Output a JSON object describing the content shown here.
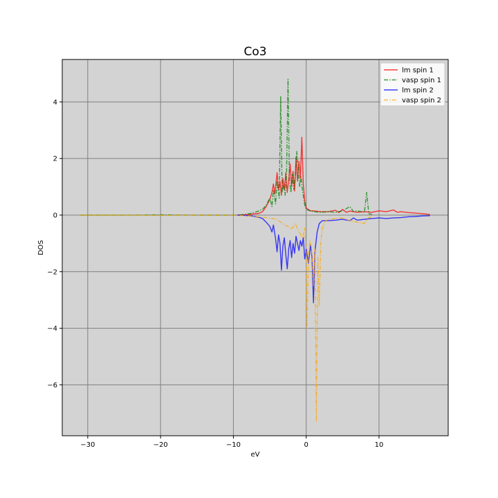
{
  "chart_data": {
    "type": "line",
    "title": "Co3",
    "xlabel": "eV",
    "ylabel": "DOS",
    "xlim": [
      -33.5,
      19.5
    ],
    "ylim": [
      -7.8,
      5.5
    ],
    "xticks": [
      -30,
      -20,
      -10,
      0,
      10
    ],
    "yticks": [
      4,
      2,
      0,
      -2,
      -4,
      -6
    ],
    "xtick_labels": [
      "−30",
      "−20",
      "−10",
      "0",
      "10"
    ],
    "ytick_labels": [
      "4",
      "2",
      "0",
      "−2",
      "−4",
      "−6"
    ],
    "grid": true,
    "plot_background": "#d3d3d3",
    "grid_color": "#808080",
    "legend_position": "top-right",
    "series": [
      {
        "name": "lm spin 1",
        "color": "#ff0000",
        "dash": "solid",
        "points": [
          [
            -9.5,
            0
          ],
          [
            -8.5,
            0.01
          ],
          [
            -7.5,
            0.03
          ],
          [
            -6.5,
            0.06
          ],
          [
            -6,
            0.12
          ],
          [
            -5.5,
            0.3
          ],
          [
            -5,
            0.55
          ],
          [
            -4.7,
            0.8
          ],
          [
            -4.5,
            1.1
          ],
          [
            -4.3,
            0.75
          ],
          [
            -4,
            1.5
          ],
          [
            -3.8,
            0.9
          ],
          [
            -3.6,
            1.2
          ],
          [
            -3.4,
            0.7
          ],
          [
            -3.2,
            1.3
          ],
          [
            -3,
            0.9
          ],
          [
            -2.8,
            1.5
          ],
          [
            -2.6,
            0.8
          ],
          [
            -2.4,
            1.25
          ],
          [
            -2.2,
            1.8
          ],
          [
            -2,
            1.0
          ],
          [
            -1.8,
            1.55
          ],
          [
            -1.6,
            0.85
          ],
          [
            -1.4,
            2.05
          ],
          [
            -1.2,
            1.2
          ],
          [
            -1,
            1.9
          ],
          [
            -0.8,
            1.3
          ],
          [
            -0.6,
            2.75
          ],
          [
            -0.4,
            1.1
          ],
          [
            -0.2,
            0.5
          ],
          [
            0,
            0.25
          ],
          [
            0.3,
            0.2
          ],
          [
            0.6,
            0.15
          ],
          [
            1,
            0.15
          ],
          [
            2,
            0.12
          ],
          [
            3,
            0.12
          ],
          [
            4,
            0.17
          ],
          [
            4.5,
            0.09
          ],
          [
            5,
            0.2
          ],
          [
            5.5,
            0.1
          ],
          [
            6,
            0.14
          ],
          [
            7,
            0.1
          ],
          [
            8,
            0.12
          ],
          [
            9,
            0.1
          ],
          [
            10,
            0.15
          ],
          [
            11,
            0.12
          ],
          [
            12,
            0.18
          ],
          [
            12.5,
            0.1
          ],
          [
            13,
            0.12
          ],
          [
            14,
            0.09
          ],
          [
            15,
            0.07
          ],
          [
            16,
            0.05
          ],
          [
            17,
            0.02
          ]
        ]
      },
      {
        "name": "vasp spin 1",
        "color": "#008000",
        "dash": "dashdot",
        "points": [
          [
            -31,
            0
          ],
          [
            -25,
            0
          ],
          [
            -20,
            0.01
          ],
          [
            -15,
            0
          ],
          [
            -10,
            0
          ],
          [
            -9,
            0.01
          ],
          [
            -8,
            0.04
          ],
          [
            -7,
            0.1
          ],
          [
            -6.5,
            0.15
          ],
          [
            -6,
            0.2
          ],
          [
            -5.5,
            0.35
          ],
          [
            -5,
            0.6
          ],
          [
            -4.7,
            0.3
          ],
          [
            -4.5,
            0.9
          ],
          [
            -4.2,
            0.4
          ],
          [
            -4,
            1.2
          ],
          [
            -3.7,
            0.6
          ],
          [
            -3.5,
            4.2
          ],
          [
            -3.3,
            0.8
          ],
          [
            -3.1,
            1.1
          ],
          [
            -2.9,
            0.7
          ],
          [
            -2.7,
            1.4
          ],
          [
            -2.5,
            4.8
          ],
          [
            -2.3,
            1.2
          ],
          [
            -2.1,
            0.8
          ],
          [
            -1.9,
            1.45
          ],
          [
            -1.7,
            0.9
          ],
          [
            -1.5,
            1.3
          ],
          [
            -1.3,
            2.25
          ],
          [
            -1.1,
            1.6
          ],
          [
            -0.9,
            1.0
          ],
          [
            -0.7,
            1.35
          ],
          [
            -0.5,
            0.85
          ],
          [
            -0.2,
            0.35
          ],
          [
            0,
            0.2
          ],
          [
            0.5,
            0.15
          ],
          [
            1,
            0.12
          ],
          [
            2,
            0.1
          ],
          [
            3,
            0.12
          ],
          [
            4,
            0.1
          ],
          [
            5,
            0.15
          ],
          [
            6,
            0.3
          ],
          [
            6.5,
            0.12
          ],
          [
            7,
            0.15
          ],
          [
            8,
            0.1
          ],
          [
            8.3,
            0.8
          ],
          [
            8.6,
            0.05
          ],
          [
            9,
            0.02
          ]
        ]
      },
      {
        "name": "lm spin 2",
        "color": "#0000ff",
        "dash": "solid",
        "points": [
          [
            -9.5,
            0
          ],
          [
            -8.5,
            -0.01
          ],
          [
            -7.5,
            -0.03
          ],
          [
            -6.5,
            -0.08
          ],
          [
            -6,
            -0.12
          ],
          [
            -5.5,
            -0.25
          ],
          [
            -5,
            -0.4
          ],
          [
            -4.7,
            -0.6
          ],
          [
            -4.5,
            -0.35
          ],
          [
            -4.2,
            -0.85
          ],
          [
            -4,
            -1.3
          ],
          [
            -3.8,
            -0.7
          ],
          [
            -3.6,
            -1.0
          ],
          [
            -3.4,
            -1.95
          ],
          [
            -3.2,
            -1.1
          ],
          [
            -3,
            -0.8
          ],
          [
            -2.8,
            -1.4
          ],
          [
            -2.6,
            -1.9
          ],
          [
            -2.4,
            -1.2
          ],
          [
            -2.2,
            -0.9
          ],
          [
            -2,
            -1.5
          ],
          [
            -1.8,
            -1.0
          ],
          [
            -1.6,
            -1.35
          ],
          [
            -1.4,
            -0.75
          ],
          [
            -1.2,
            -1.0
          ],
          [
            -1,
            -1.25
          ],
          [
            -0.8,
            -0.9
          ],
          [
            -0.6,
            -1.1
          ],
          [
            -0.4,
            -0.8
          ],
          [
            -0.2,
            -1.55
          ],
          [
            0,
            -1.2
          ],
          [
            0.3,
            -1.7
          ],
          [
            0.6,
            -1.05
          ],
          [
            0.8,
            -1.5
          ],
          [
            1,
            -3.1
          ],
          [
            1.2,
            -1.3
          ],
          [
            1.5,
            -0.6
          ],
          [
            1.8,
            -0.3
          ],
          [
            2.2,
            -0.2
          ],
          [
            3,
            -0.2
          ],
          [
            4,
            -0.18
          ],
          [
            5,
            -0.15
          ],
          [
            6,
            -0.2
          ],
          [
            6.5,
            -0.1
          ],
          [
            7,
            -0.18
          ],
          [
            8,
            -0.15
          ],
          [
            9,
            -0.12
          ],
          [
            10,
            -0.1
          ],
          [
            11,
            -0.12
          ],
          [
            12,
            -0.1
          ],
          [
            13,
            -0.09
          ],
          [
            14,
            -0.06
          ],
          [
            15,
            -0.05
          ],
          [
            16,
            -0.03
          ],
          [
            17,
            -0.02
          ]
        ]
      },
      {
        "name": "vasp spin 2",
        "color": "#ffa500",
        "dash": "dashdot",
        "points": [
          [
            -31,
            0
          ],
          [
            -25,
            0
          ],
          [
            -20,
            -0.01
          ],
          [
            -15,
            0
          ],
          [
            -10,
            0
          ],
          [
            -9,
            -0.01
          ],
          [
            -8,
            -0.03
          ],
          [
            -7,
            -0.05
          ],
          [
            -6,
            -0.08
          ],
          [
            -5,
            -0.1
          ],
          [
            -4,
            -0.15
          ],
          [
            -3.5,
            -0.25
          ],
          [
            -3,
            -0.35
          ],
          [
            -2.5,
            -0.4
          ],
          [
            -2,
            -0.5
          ],
          [
            -1.5,
            -0.3
          ],
          [
            -1,
            -0.6
          ],
          [
            -0.5,
            -0.8
          ],
          [
            -0.2,
            -0.45
          ],
          [
            0,
            -1.4
          ],
          [
            0.1,
            -4.0
          ],
          [
            0.3,
            -1.5
          ],
          [
            0.5,
            -0.9
          ],
          [
            0.8,
            -1.4
          ],
          [
            1,
            -2.5
          ],
          [
            1.2,
            -1.2
          ],
          [
            1.4,
            -7.3
          ],
          [
            1.6,
            -1.5
          ],
          [
            1.8,
            -3.2
          ],
          [
            2,
            -1.0
          ],
          [
            2.2,
            -0.5
          ],
          [
            2.5,
            -0.25
          ],
          [
            3,
            -0.15
          ],
          [
            4,
            -0.12
          ],
          [
            5,
            -0.1
          ],
          [
            6,
            -0.2
          ],
          [
            7,
            -0.25
          ],
          [
            8,
            -0.3
          ],
          [
            8.5,
            -0.1
          ],
          [
            9,
            -0.05
          ]
        ]
      }
    ]
  }
}
